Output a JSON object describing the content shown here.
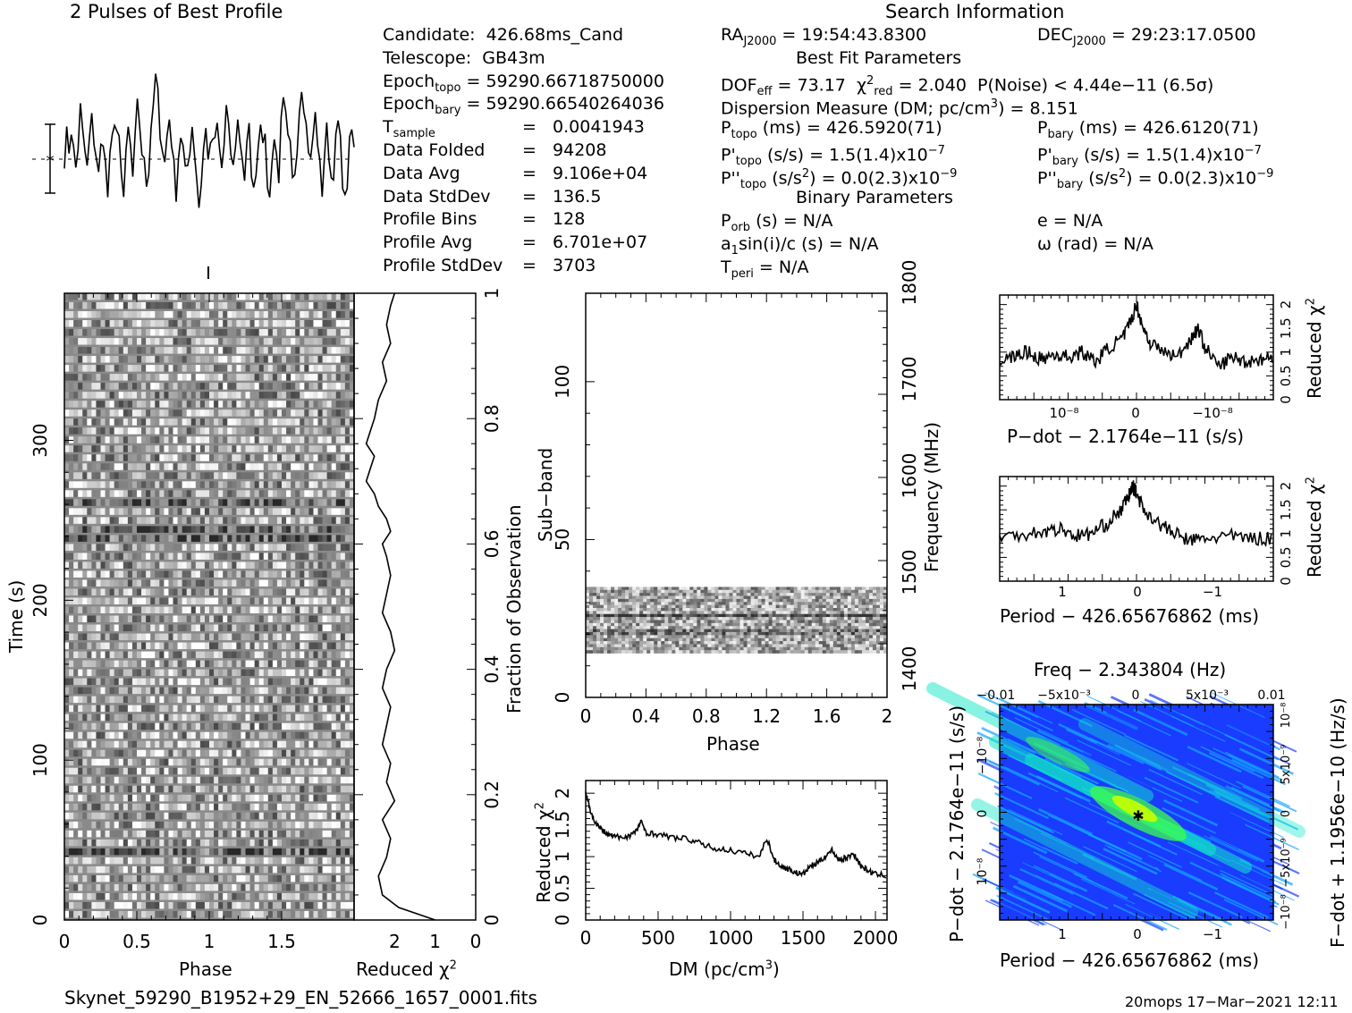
{
  "header": {
    "profile_title": "2 Pulses of Best Profile",
    "search_title": "Search Information",
    "best_fit_title": "Best Fit Parameters",
    "binary_title": "Binary Parameters"
  },
  "candidate_info": [
    {
      "label": "Candidate:",
      "value": "426.68ms_Cand"
    },
    {
      "label": "Telescope:",
      "value": "GB43m"
    },
    {
      "label": "Epoch",
      "sub": "topo",
      "value": "= 59290.66718750000"
    },
    {
      "label": "Epoch",
      "sub": "bary",
      "value": "= 59290.66540264036"
    },
    {
      "label": "T",
      "sub": "sample",
      "value": "=   0.0041943"
    },
    {
      "label": "Data Folded",
      "value": "=   94208"
    },
    {
      "label": "Data Avg",
      "value": "=   9.106e+04"
    },
    {
      "label": "Data StdDev",
      "value": "=   136.5"
    },
    {
      "label": "Profile Bins",
      "value": "=   128"
    },
    {
      "label": "Profile Avg",
      "value": "=   6.701e+07"
    },
    {
      "label": "Profile StdDev",
      "value": "=   3703"
    }
  ],
  "search_info": {
    "ra": "= 19:54:43.8300",
    "dec": "= 29:23:17.0500",
    "dof": "= 73.17",
    "chi2_red": "= 2.040",
    "p_noise": "P(Noise) < 4.44e−11   (6.5σ)",
    "dm_line": "Dispersion Measure (DM; pc/cm",
    "dm_value": ") = 8.151",
    "p_topo": "(ms) =   426.5920(71)",
    "p_bary": "(ms) =   426.6120(71)",
    "pd_topo": "(s/s) =   1.5(1.4)x10",
    "pd_bary": "(s/s) =   1.5(1.4)x10",
    "pd_exp": "−7",
    "pdd_topo": "(s/s",
    "pdd_tail": ") = 0.0(2.3)x10",
    "pdd_exp": "−9",
    "p_orb": "(s) = N/A",
    "a1sini": "a",
    "a1sini_tail": "sin(i)/c (s) = N/A",
    "t_peri": "= N/A",
    "e": "e = N/A",
    "omega": "ω (rad) = N/A"
  },
  "footer": {
    "filename": "Skynet_59290_B1952+29_EN_52666_1657_0001.fits",
    "stamp": "20mops 17−Mar−2021 12:11"
  },
  "axes": {
    "phase": "Phase",
    "time": "Time (s)",
    "reduced_chi2": "Reduced χ",
    "fraction": "Fraction of Observation",
    "subband": "Sub−band",
    "frequency": "Frequency (MHz)",
    "dm": "DM (pc/cm",
    "pdot": "P−dot − 2.1764e−11 (s/s)",
    "period": "Period − 426.65676862 (ms)",
    "freq": "Freq − 2.343804 (Hz)",
    "fdot": "F−dot + 1.1956e−10 (Hz/s)"
  },
  "chart_data": [
    {
      "type": "line",
      "name": "profile",
      "title": "2 Pulses of Best Profile",
      "x_range": [
        0,
        2
      ],
      "y": [
        0.2,
        0.9,
        0.5,
        1.4,
        0.3,
        -0.4,
        0.6,
        2.1,
        1.0,
        0.3,
        -0.5,
        0.8,
        1.6,
        0.9,
        0.2,
        -0.8,
        0.4,
        1.1,
        -0.3,
        -1.6,
        -0.2,
        0.7,
        1.9,
        1.2,
        0.5,
        -0.9,
        -1.8,
        0.3,
        0.9,
        0.1,
        -0.6,
        1.3,
        2.2,
        1.6,
        0.6,
        0.3,
        -1.1,
        -0.4,
        0.8,
        2.3,
        3.4,
        2.6,
        1.4,
        0.6,
        -0.2,
        1.0,
        1.8,
        0.9,
        -0.5,
        -1.3,
        0.2,
        1.1,
        0.4,
        -0.8,
        -0.3,
        0.6,
        1.5,
        0.5,
        -0.7,
        -2.0,
        -0.9,
        0.4,
        1.2,
        0.3,
        0.2,
        0.9,
        0.5,
        1.4,
        0.3,
        -0.4,
        0.6,
        2.1,
        1.0,
        0.3,
        -0.5,
        0.8,
        1.6,
        0.9,
        0.2,
        -0.8,
        0.4,
        1.1,
        -0.3,
        -1.6,
        -0.2,
        0.7,
        1.9,
        1.2,
        0.5,
        -0.9,
        -1.8,
        0.3,
        0.9,
        0.1,
        -0.6,
        1.3,
        2.2,
        1.6,
        0.6,
        0.3,
        -1.1,
        -0.4,
        0.8,
        2.3,
        3.4,
        2.6,
        1.4,
        0.6,
        -0.2,
        1.0,
        1.8,
        0.9,
        -0.5,
        -1.3,
        0.2,
        1.1,
        0.4,
        -0.8,
        -0.3,
        0.6,
        1.5,
        0.5,
        -0.7,
        -2.0,
        -0.9,
        0.4,
        1.2,
        0.3
      ]
    },
    {
      "type": "heatmap",
      "name": "time-phase",
      "x_label": "Phase",
      "y_label": "Time (s)",
      "x_ticks": [
        "0",
        "0.5",
        "1",
        "1.5"
      ],
      "y_ticks": [
        "0",
        "100",
        "200",
        "300"
      ],
      "x_range": [
        0,
        2
      ],
      "y_range": [
        0,
        392
      ]
    },
    {
      "type": "line",
      "name": "time-chi2",
      "x_label": "Reduced χ",
      "x_ticks": [
        "2",
        "1",
        "0"
      ],
      "y2_ticks": [
        "0",
        "0.2",
        "0.4",
        "0.6",
        "0.8",
        "1"
      ],
      "y2_label": "Fraction of Observation",
      "x": [
        1.0,
        1.9,
        2.3,
        2.4,
        2.2,
        2.1,
        2.3,
        2.0,
        2.2,
        2.1,
        2.3,
        2.2,
        2.1,
        2.3,
        2.2,
        2.0,
        2.1,
        2.3,
        2.2,
        2.1,
        2.2,
        2.3,
        2.1,
        2.2,
        2.4,
        2.5,
        2.7,
        2.6,
        2.5,
        2.7,
        2.6,
        2.5,
        2.4,
        2.2,
        2.3,
        2.1,
        2.2,
        2.1,
        2.0
      ],
      "y": [
        0,
        0.02,
        0.04,
        0.07,
        0.1,
        0.13,
        0.16,
        0.19,
        0.22,
        0.25,
        0.28,
        0.31,
        0.34,
        0.37,
        0.4,
        0.43,
        0.46,
        0.49,
        0.52,
        0.55,
        0.58,
        0.6,
        0.62,
        0.64,
        0.66,
        0.68,
        0.7,
        0.72,
        0.74,
        0.76,
        0.78,
        0.8,
        0.83,
        0.86,
        0.89,
        0.92,
        0.95,
        0.98,
        1.0
      ]
    },
    {
      "type": "heatmap",
      "name": "subband-phase",
      "x_label": "Phase",
      "y_label": "Sub−band",
      "y2_label": "Frequency (MHz)",
      "x_ticks": [
        "0",
        "0.4",
        "0.8",
        "1.2",
        "1.6",
        "2"
      ],
      "y_ticks": [
        "0",
        "50",
        "100"
      ],
      "y2_ticks": [
        "1400",
        "1500",
        "1600",
        "1700",
        "1800"
      ],
      "x_range": [
        0,
        2
      ],
      "y_range": [
        0,
        128
      ],
      "band_rows": [
        14,
        35
      ]
    },
    {
      "type": "line",
      "name": "dm-chi2",
      "x_label": "DM (pc/cm",
      "y_label": "Reduced χ",
      "x_ticks": [
        "0",
        "500",
        "1000",
        "1500",
        "2000"
      ],
      "y_ticks": [
        "0",
        "0.5",
        "1",
        "1.5",
        "2"
      ],
      "x_range": [
        0,
        2080
      ],
      "y_range": [
        0,
        2.2
      ],
      "x": [
        0,
        30,
        60,
        100,
        150,
        200,
        250,
        300,
        350,
        380,
        420,
        500,
        600,
        700,
        800,
        900,
        1000,
        1100,
        1200,
        1250,
        1300,
        1350,
        1400,
        1450,
        1500,
        1550,
        1600,
        1650,
        1700,
        1750,
        1800,
        1850,
        1900,
        1950,
        2000,
        2080
      ],
      "y": [
        2.0,
        1.75,
        1.55,
        1.45,
        1.35,
        1.32,
        1.3,
        1.33,
        1.4,
        1.55,
        1.38,
        1.35,
        1.3,
        1.28,
        1.2,
        1.12,
        1.1,
        1.05,
        1.0,
        1.3,
        0.95,
        0.85,
        0.8,
        0.75,
        0.72,
        0.85,
        0.9,
        1.0,
        1.1,
        0.95,
        0.98,
        1.05,
        0.85,
        0.78,
        0.72,
        0.7
      ]
    },
    {
      "type": "line",
      "name": "pdot-chi2",
      "x_label": "P−dot − 2.1764e−11 (s/s)",
      "y_label": "Reduced χ",
      "x_ticks": [
        "10⁻⁸",
        "0",
        "−10⁻⁸"
      ],
      "y_ticks": [
        "0",
        "0.5",
        "1",
        "1.5",
        "2"
      ],
      "x_range": [
        -1,
        1
      ],
      "y_range": [
        0,
        2.2
      ],
      "x": [
        -1,
        -0.9,
        -0.8,
        -0.7,
        -0.6,
        -0.5,
        -0.4,
        -0.3,
        -0.2,
        -0.1,
        -0.05,
        0,
        0.05,
        0.1,
        0.2,
        0.3,
        0.4,
        0.45,
        0.5,
        0.6,
        0.7,
        0.8,
        0.9,
        1.0
      ],
      "y": [
        0.8,
        0.9,
        1.0,
        0.85,
        0.95,
        0.9,
        1.0,
        0.8,
        1.1,
        1.3,
        1.6,
        2.0,
        1.5,
        1.2,
        1.0,
        0.9,
        1.3,
        1.5,
        1.1,
        0.7,
        0.9,
        0.8,
        0.85,
        0.9
      ]
    },
    {
      "type": "line",
      "name": "period-chi2",
      "x_label": "Period − 426.65676862 (ms)",
      "y_label": "Reduced χ",
      "x_ticks": [
        "1",
        "0",
        "−1"
      ],
      "y_ticks": [
        "0",
        "0.5",
        "1",
        "1.5",
        "2"
      ],
      "x_range": [
        1.8,
        -1.8
      ],
      "y_range": [
        0,
        2.2
      ],
      "x": [
        1.8,
        1.5,
        1.2,
        1.0,
        0.8,
        0.6,
        0.4,
        0.2,
        0.1,
        0.05,
        0,
        -0.1,
        -0.3,
        -0.5,
        -0.7,
        -0.9,
        -1.2,
        -1.5,
        -1.8
      ],
      "y": [
        0.9,
        1.0,
        1.05,
        1.1,
        0.95,
        1.0,
        1.2,
        1.5,
        1.8,
        2.0,
        1.85,
        1.5,
        1.2,
        1.0,
        0.85,
        0.9,
        0.95,
        0.9,
        0.9
      ]
    },
    {
      "type": "heatmap",
      "name": "period-pdot",
      "x_label": "Period − 426.65676862 (ms)",
      "y_label": "P−dot − 2.1764e−11 (s/s)",
      "x2_label": "Freq − 2.343804 (Hz)",
      "y2_label": "F−dot + 1.1956e−10 (Hz/s)",
      "x_ticks": [
        "1",
        "0",
        "−1"
      ],
      "y_ticks": [
        "−10⁻⁸",
        "0",
        "10⁻⁸"
      ],
      "x2_ticks": [
        "−0.01",
        "−5x10⁻³",
        "0",
        "5x10⁻³",
        "0.01"
      ],
      "y2_ticks": [
        "10⁻⁸",
        "5x10⁻⁹",
        "0",
        "−5x10⁻⁹",
        "−10⁻⁸"
      ],
      "colors": [
        "#1a3cff",
        "#13a4ff",
        "#10e8c8",
        "#3cff4a",
        "#c8ff00"
      ]
    }
  ]
}
